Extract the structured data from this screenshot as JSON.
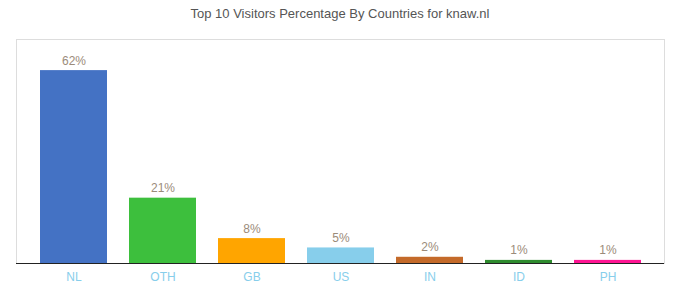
{
  "chart_data": {
    "type": "bar",
    "title": "Top 10 Visitors Percentage By Countries for knaw.nl",
    "categories": [
      "NL",
      "OTH",
      "GB",
      "US",
      "IN",
      "ID",
      "PH"
    ],
    "values": [
      62,
      21,
      8,
      5,
      2,
      1,
      1
    ],
    "value_labels": [
      "62%",
      "21%",
      "8%",
      "5%",
      "2%",
      "1%",
      "1%"
    ],
    "colors": [
      "#4472C4",
      "#3DBF3D",
      "#FFA500",
      "#87CEEB",
      "#C46A2A",
      "#2E8B2E",
      "#FF1493"
    ],
    "ylim": [
      0,
      72
    ],
    "grid": false,
    "data_labels": true,
    "tick_labels": "x"
  }
}
